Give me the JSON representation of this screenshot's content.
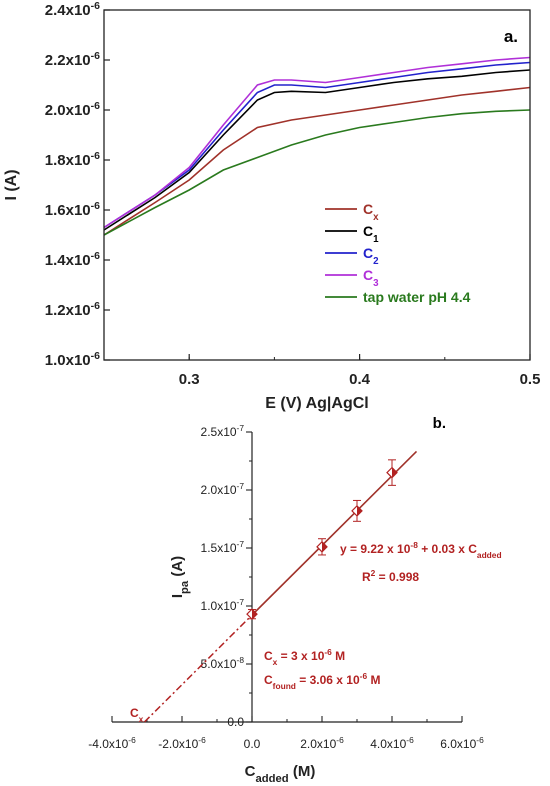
{
  "chart_data": [
    {
      "type": "line",
      "panel_label": "a.",
      "title": "",
      "xlabel": "E (V) Ag|AgCl",
      "ylabel": "I (A)",
      "xlim": [
        0.25,
        0.5
      ],
      "ylim": [
        1e-06,
        2.4e-06
      ],
      "x_ticks": [
        0.3,
        0.4,
        0.5
      ],
      "x_tick_labels": [
        "0.3",
        "0.4",
        "0.5"
      ],
      "y_ticks": [
        1e-06,
        1.2e-06,
        1.4e-06,
        1.6e-06,
        1.8e-06,
        2e-06,
        2.2e-06,
        2.4e-06
      ],
      "y_tick_labels": [
        {
          "base": "1.0x10",
          "exp": "-6"
        },
        {
          "base": "1.2x10",
          "exp": "-6"
        },
        {
          "base": "1.4x10",
          "exp": "-6"
        },
        {
          "base": "1.6x10",
          "exp": "-6"
        },
        {
          "base": "1.8x10",
          "exp": "-6"
        },
        {
          "base": "2.0x10",
          "exp": "-6"
        },
        {
          "base": "2.2x10",
          "exp": "-6"
        },
        {
          "base": "2.4x10",
          "exp": "-6"
        }
      ],
      "legend_position": "right",
      "series": [
        {
          "name": "C",
          "sub": "x",
          "color": "#a0322a",
          "x": [
            0.25,
            0.28,
            0.3,
            0.32,
            0.34,
            0.36,
            0.38,
            0.4,
            0.42,
            0.44,
            0.46,
            0.48,
            0.5
          ],
          "y": [
            1.5e-06,
            1.63e-06,
            1.72e-06,
            1.84e-06,
            1.93e-06,
            1.96e-06,
            1.98e-06,
            2e-06,
            2.02e-06,
            2.04e-06,
            2.06e-06,
            2.075e-06,
            2.09e-06
          ]
        },
        {
          "name": "C",
          "sub": "1",
          "color": "#000000",
          "x": [
            0.25,
            0.28,
            0.3,
            0.32,
            0.34,
            0.35,
            0.36,
            0.38,
            0.4,
            0.42,
            0.44,
            0.46,
            0.48,
            0.5
          ],
          "y": [
            1.52e-06,
            1.65e-06,
            1.75e-06,
            1.9e-06,
            2.04e-06,
            2.07e-06,
            2.075e-06,
            2.07e-06,
            2.09e-06,
            2.11e-06,
            2.125e-06,
            2.135e-06,
            2.15e-06,
            2.16e-06
          ]
        },
        {
          "name": "C",
          "sub": "2",
          "color": "#2222cc",
          "x": [
            0.25,
            0.28,
            0.3,
            0.32,
            0.34,
            0.35,
            0.36,
            0.38,
            0.4,
            0.42,
            0.44,
            0.46,
            0.48,
            0.5
          ],
          "y": [
            1.53e-06,
            1.66e-06,
            1.76e-06,
            1.92e-06,
            2.07e-06,
            2.1e-06,
            2.1e-06,
            2.09e-06,
            2.11e-06,
            2.13e-06,
            2.15e-06,
            2.165e-06,
            2.18e-06,
            2.19e-06
          ]
        },
        {
          "name": "C",
          "sub": "3",
          "color": "#b030d8",
          "x": [
            0.25,
            0.28,
            0.3,
            0.32,
            0.34,
            0.35,
            0.36,
            0.38,
            0.4,
            0.42,
            0.44,
            0.46,
            0.48,
            0.5
          ],
          "y": [
            1.53e-06,
            1.66e-06,
            1.77e-06,
            1.94e-06,
            2.1e-06,
            2.12e-06,
            2.12e-06,
            2.11e-06,
            2.13e-06,
            2.15e-06,
            2.17e-06,
            2.185e-06,
            2.2e-06,
            2.21e-06
          ]
        },
        {
          "name": "tap water pH 4.4",
          "sub": "",
          "color": "#2a7a1e",
          "x": [
            0.25,
            0.28,
            0.3,
            0.32,
            0.34,
            0.36,
            0.38,
            0.4,
            0.42,
            0.44,
            0.46,
            0.48,
            0.5
          ],
          "y": [
            1.5e-06,
            1.61e-06,
            1.68e-06,
            1.76e-06,
            1.81e-06,
            1.86e-06,
            1.9e-06,
            1.93e-06,
            1.95e-06,
            1.97e-06,
            1.985e-06,
            1.995e-06,
            2e-06
          ]
        }
      ]
    },
    {
      "type": "scatter",
      "panel_label": "b.",
      "title": "",
      "xlabel": {
        "base": "C",
        "sub": "added",
        "rest": " (M)"
      },
      "ylabel": {
        "base": "I",
        "sub": "pa",
        "rest": " (A)"
      },
      "xlim": [
        -4e-06,
        6e-06
      ],
      "ylim": [
        0,
        2.5e-07
      ],
      "x_ticks": [
        -4e-06,
        -2e-06,
        0,
        2e-06,
        4e-06,
        6e-06
      ],
      "x_tick_labels": [
        {
          "base": "-4.0x10",
          "exp": "-6"
        },
        {
          "base": "-2.0x10",
          "exp": "-6"
        },
        {
          "base": "0.0",
          "exp": ""
        },
        {
          "base": "2.0x10",
          "exp": "-6"
        },
        {
          "base": "4.0x10",
          "exp": "-6"
        },
        {
          "base": "6.0x10",
          "exp": "-6"
        }
      ],
      "y_ticks": [
        0,
        5e-08,
        1e-07,
        1.5e-07,
        2e-07,
        2.5e-07
      ],
      "y_tick_labels": [
        {
          "base": "0.0",
          "exp": ""
        },
        {
          "base": "5.0x10",
          "exp": "-8"
        },
        {
          "base": "1.0x10",
          "exp": "-7"
        },
        {
          "base": "1.5x10",
          "exp": "-7"
        },
        {
          "base": "2.0x10",
          "exp": "-7"
        },
        {
          "base": "2.5x10",
          "exp": "-7"
        }
      ],
      "points": {
        "x": [
          0,
          2e-06,
          3e-06,
          4e-06
        ],
        "y": [
          9.3e-08,
          1.51e-07,
          1.82e-07,
          2.15e-07
        ],
        "err": [
          4e-09,
          7e-09,
          9e-09,
          1.1e-08
        ]
      },
      "fit_line": {
        "x": [
          0,
          4.7e-06
        ],
        "slope": 0.03,
        "intercept": 9.22e-08
      },
      "extrapolation": {
        "x": [
          -3.07e-06,
          0
        ]
      },
      "color": "#b22222",
      "annotations": {
        "equation": {
          "pre": "y = 9.22 x 10",
          "exp": "-8",
          "mid": " + 0.03 x C",
          "sub": "added"
        },
        "r2": {
          "pre": "R",
          "exp": "2",
          "rest": " = 0.998"
        },
        "cx": {
          "pre": "C",
          "sub": "x",
          "mid": " = 3 x 10",
          "exp": "-6",
          "rest": " M"
        },
        "cfound": {
          "pre": "C",
          "sub": "found",
          "mid": " = 3.06 x 10",
          "exp": "-6",
          "rest": " M"
        },
        "cx_marker": {
          "pre": "C",
          "sub": "x"
        }
      }
    }
  ]
}
